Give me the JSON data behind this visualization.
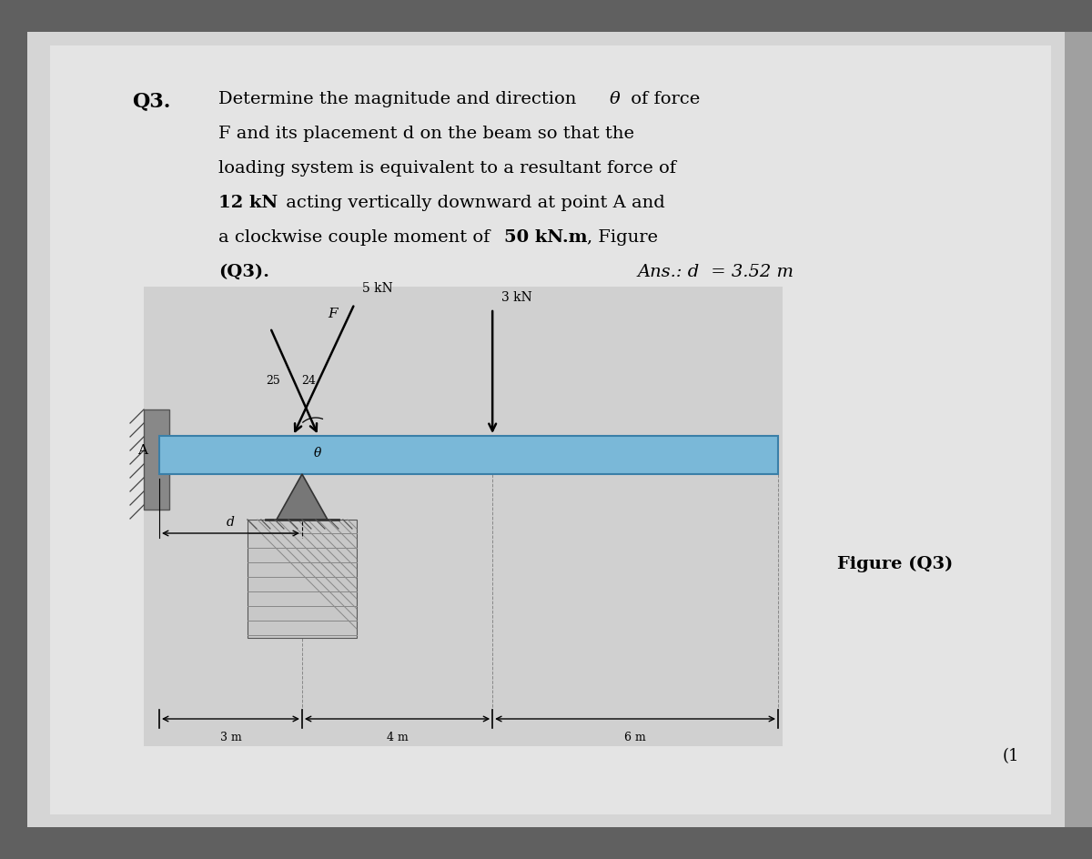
{
  "outer_bg": "#a0a0a0",
  "page_bg": "#d8d8d8",
  "diagram_bg": "#d0d0d0",
  "beam_color": "#7ab8d8",
  "beam_edge": "#4488aa",
  "wall_color": "#888888",
  "wall_hatch_color": "#555555",
  "ground_color": "#cccccc",
  "text_color": "#111111",
  "q3_label": "Q3.",
  "line1": "Determine the magnitude and direction ",
  "line1b": "θ",
  "line1c": " of force",
  "line2": "F and its placement d on the beam so that the",
  "line3": "loading system is equivalent to a resultant force of",
  "line4a": "12 kN",
  "line4b": " acting vertically downward at point A and",
  "line5a": "a clockwise couple moment of ",
  "line5b": "50 kN.m",
  "line5c": ", Figure",
  "line6": "(Q3).",
  "ans_label": "Ans.: d",
  "ans_eq": " = 3.52 m",
  "fig_label": "Figure (Q3)",
  "page_num": "(1",
  "dim_3m": "3 m",
  "dim_4m": "4 m",
  "dim_6m": "6 m",
  "label_5kN": "5 kN",
  "label_3kN": "3 kN",
  "label_F": "F",
  "label_25": "25",
  "label_24": "24",
  "label_theta": "θ",
  "label_A": "A",
  "label_d": "d"
}
